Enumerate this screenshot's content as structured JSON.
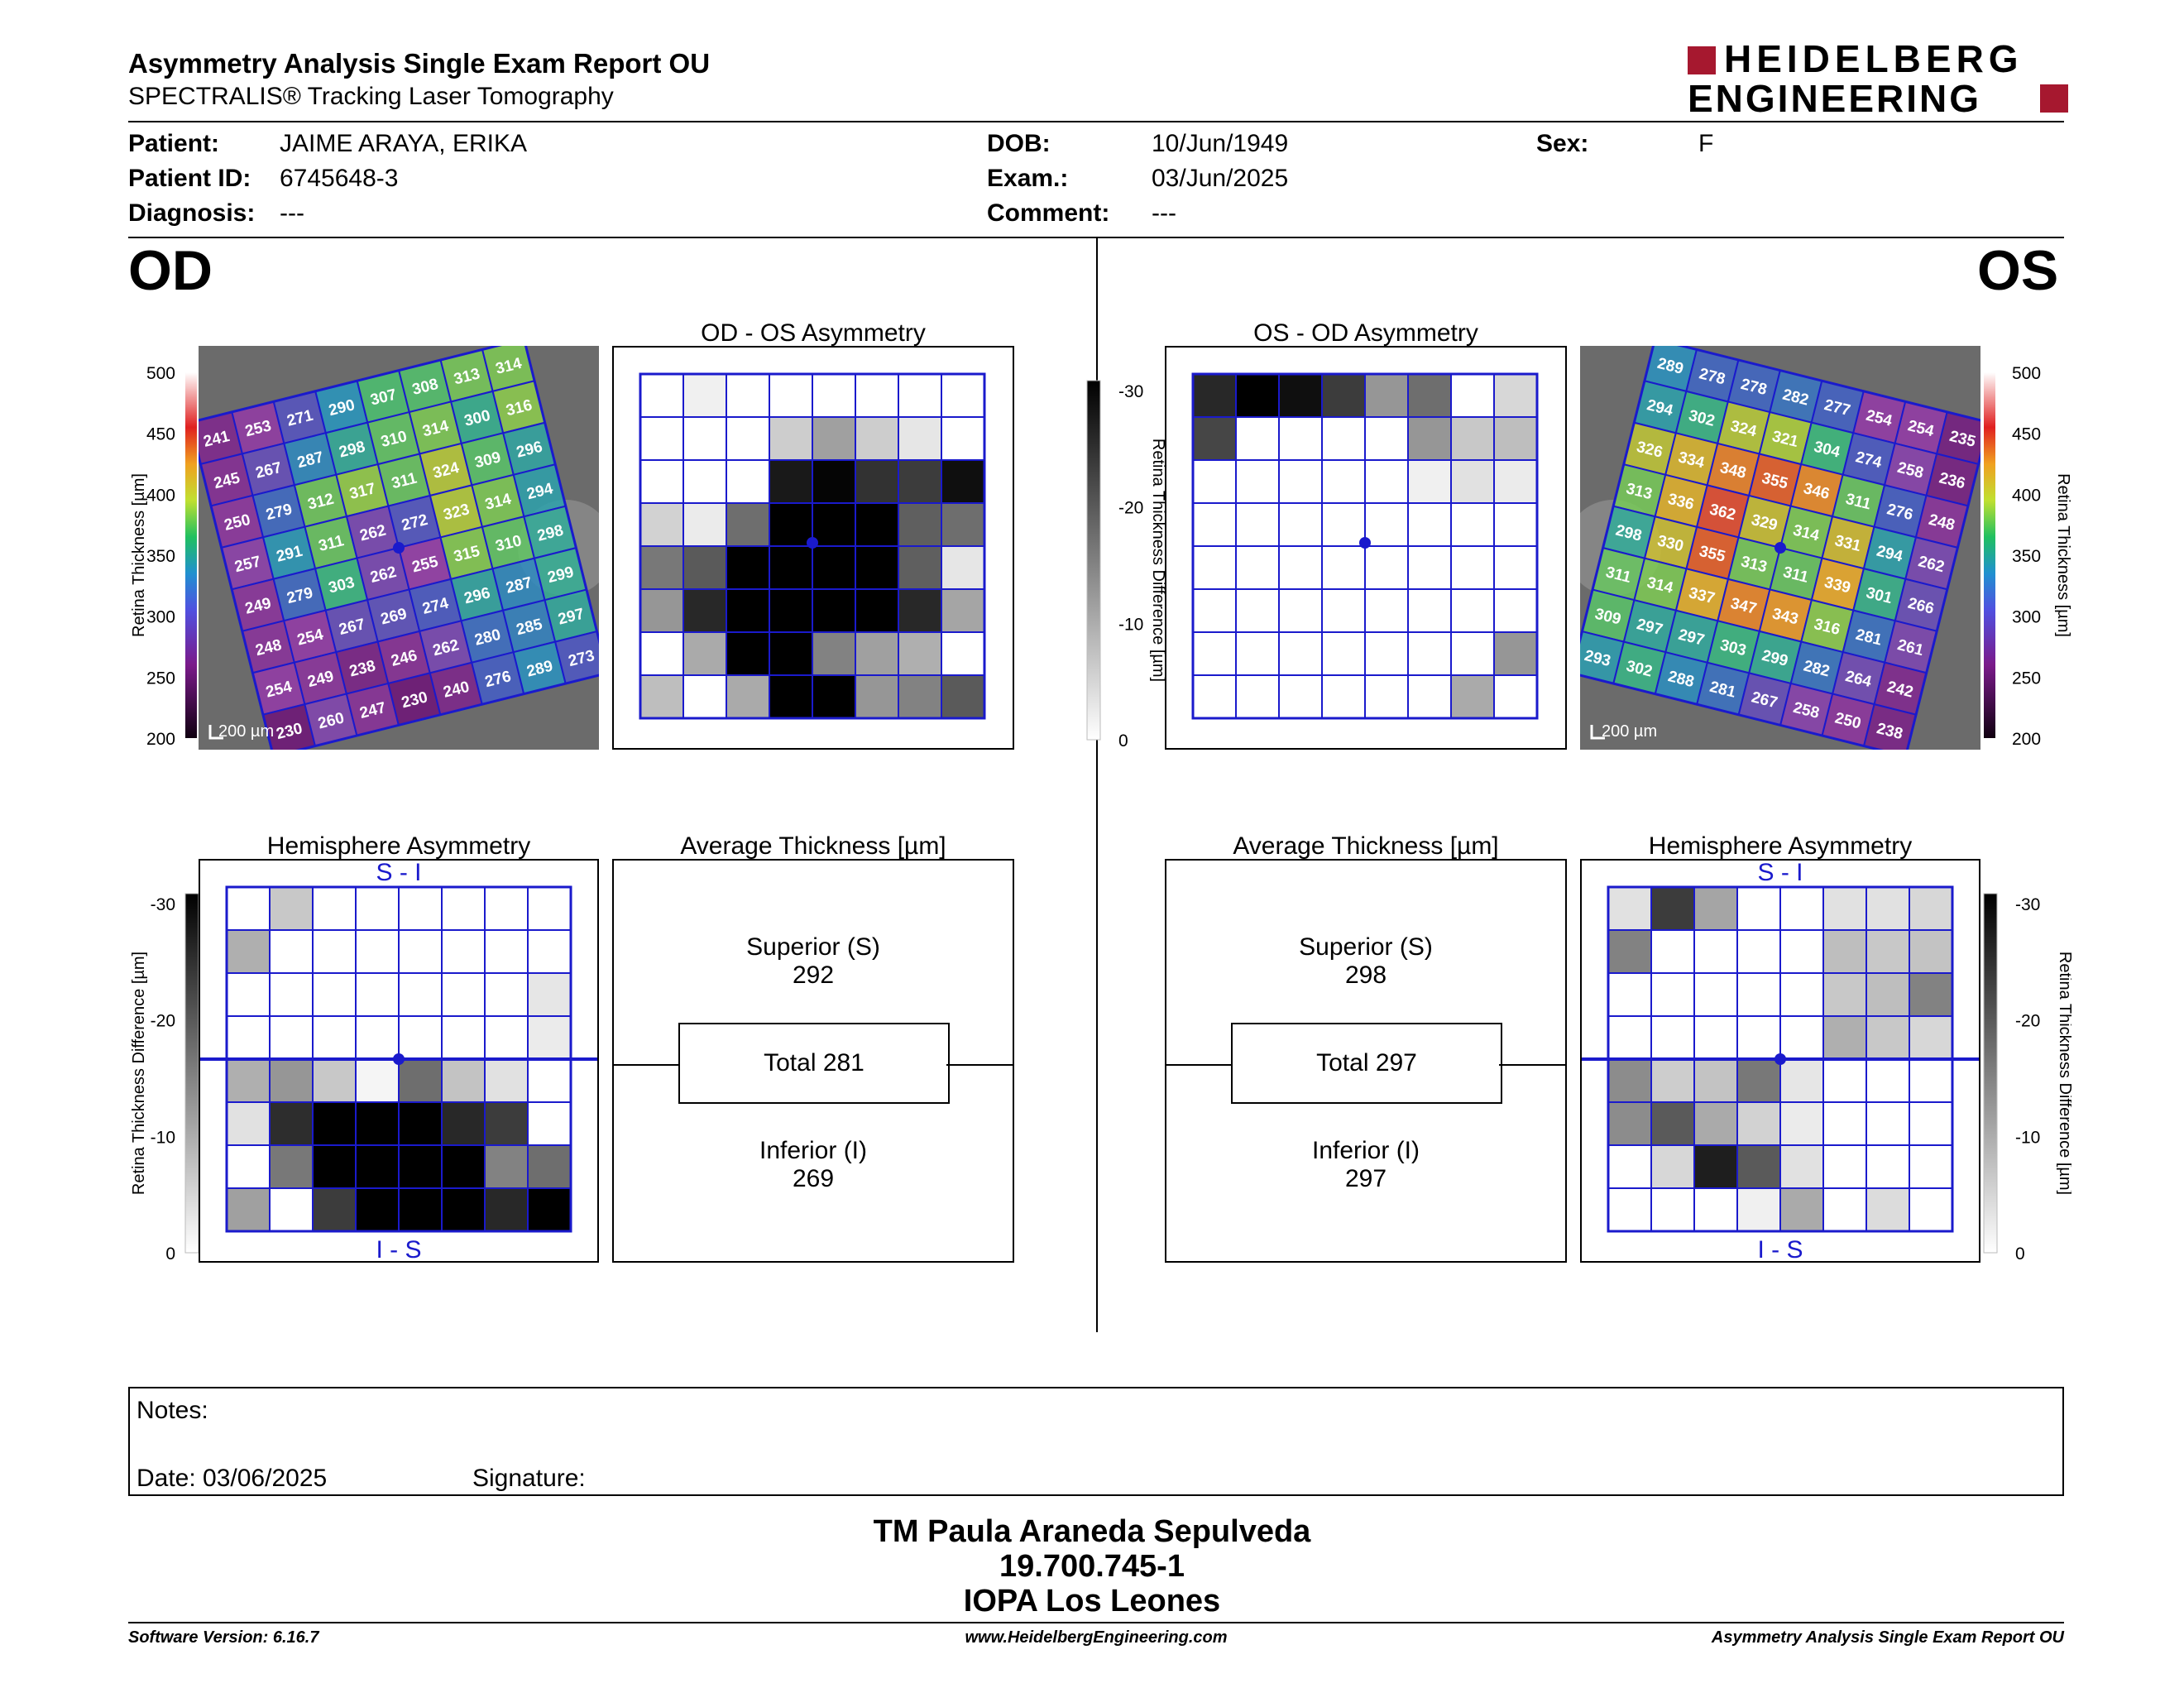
{
  "header": {
    "title": "Asymmetry Analysis Single Exam Report OU",
    "subtitle": "SPECTRALIS® Tracking Laser Tomography",
    "logo_line1": "HEIDELBERG",
    "logo_line2": "ENGINEERING"
  },
  "patient": {
    "patient_label": "Patient:",
    "patient_value": "JAIME ARAYA, ERIKA",
    "id_label": "Patient ID:",
    "id_value": "6745648-3",
    "diagnosis_label": "Diagnosis:",
    "diagnosis_value": "---",
    "dob_label": "DOB:",
    "dob_value": "10/Jun/1949",
    "exam_label": "Exam.:",
    "exam_value": "03/Jun/2025",
    "comment_label": "Comment:",
    "comment_value": "---",
    "sex_label": "Sex:",
    "sex_value": "F"
  },
  "eyes": {
    "od": "OD",
    "os": "OS"
  },
  "colors": {
    "grid_blue": "#1a1acc",
    "logo_red": "#a6182f"
  },
  "od": {
    "asym_title": "OD - OS Asymmetry",
    "hemi_title": "Hemisphere Asymmetry",
    "avg_title": "Average Thickness [µm]",
    "scale_label": "200 µm",
    "thickness_axis_label": "Retina Thickness [µm]",
    "diff_axis_label": "Retina Thickness Difference [µm]",
    "thickness_ticks": [
      "500",
      "450",
      "400",
      "350",
      "300",
      "250",
      "200"
    ],
    "diff_ticks": [
      "-30",
      "-20",
      "-10",
      "0"
    ],
    "thickness_grid": [
      [
        241,
        253,
        271,
        290,
        307,
        308,
        313,
        314
      ],
      [
        245,
        267,
        287,
        298,
        310,
        314,
        300,
        316
      ],
      [
        250,
        279,
        312,
        317,
        311,
        324,
        309,
        296
      ],
      [
        257,
        291,
        311,
        262,
        272,
        323,
        314,
        294
      ],
      [
        249,
        279,
        303,
        262,
        255,
        315,
        310,
        298
      ],
      [
        248,
        254,
        267,
        269,
        274,
        296,
        287,
        299
      ],
      [
        254,
        249,
        238,
        246,
        262,
        280,
        285,
        297
      ],
      [
        230,
        260,
        247,
        230,
        240,
        276,
        289,
        273
      ]
    ],
    "asymmetry_shades": [
      [
        255,
        240,
        255,
        255,
        255,
        255,
        255,
        255
      ],
      [
        255,
        255,
        255,
        205,
        160,
        205,
        230,
        255
      ],
      [
        255,
        255,
        255,
        25,
        5,
        50,
        60,
        15
      ],
      [
        210,
        235,
        110,
        0,
        0,
        0,
        95,
        110
      ],
      [
        120,
        90,
        0,
        0,
        0,
        0,
        95,
        230
      ],
      [
        150,
        40,
        0,
        0,
        0,
        0,
        40,
        165
      ],
      [
        255,
        170,
        0,
        0,
        130,
        160,
        175,
        255
      ],
      [
        190,
        255,
        170,
        0,
        0,
        150,
        130,
        90
      ]
    ],
    "hemi_label_top": "S - I",
    "hemi_label_bottom": "I - S",
    "hemi_shades": [
      [
        255,
        200,
        255,
        255,
        255,
        255,
        255,
        255
      ],
      [
        175,
        255,
        255,
        255,
        255,
        255,
        255,
        255
      ],
      [
        255,
        255,
        255,
        255,
        255,
        255,
        255,
        230
      ],
      [
        255,
        255,
        255,
        255,
        255,
        255,
        255,
        235
      ],
      [
        175,
        150,
        200,
        245,
        110,
        195,
        225,
        255
      ],
      [
        225,
        45,
        0,
        0,
        0,
        40,
        60,
        255
      ],
      [
        255,
        120,
        0,
        0,
        0,
        0,
        130,
        110
      ],
      [
        160,
        255,
        60,
        0,
        0,
        0,
        40,
        0
      ]
    ],
    "avg": {
      "superior_label": "Superior (S)",
      "superior_value": "292",
      "total_label": "Total 281",
      "inferior_label": "Inferior (I)",
      "inferior_value": "269"
    }
  },
  "os": {
    "asym_title": "OS - OD Asymmetry",
    "hemi_title": "Hemisphere Asymmetry",
    "avg_title": "Average Thickness [µm]",
    "scale_label": "200 µm",
    "thickness_axis_label": "Retina Thickness [µm]",
    "diff_axis_label": "Retina Thickness Difference [µm]",
    "thickness_ticks": [
      "500",
      "450",
      "400",
      "350",
      "300",
      "250",
      "200"
    ],
    "diff_ticks": [
      "-30",
      "-20",
      "-10",
      "0"
    ],
    "thickness_grid": [
      [
        289,
        278,
        278,
        282,
        277,
        254,
        254,
        235
      ],
      [
        294,
        302,
        324,
        321,
        304,
        274,
        258,
        236
      ],
      [
        326,
        334,
        348,
        355,
        346,
        311,
        276,
        248
      ],
      [
        313,
        336,
        362,
        329,
        314,
        331,
        294,
        262
      ],
      [
        298,
        330,
        355,
        313,
        311,
        339,
        301,
        266
      ],
      [
        311,
        314,
        337,
        347,
        343,
        316,
        281,
        261
      ],
      [
        309,
        297,
        297,
        303,
        299,
        282,
        264,
        242
      ],
      [
        293,
        302,
        288,
        281,
        267,
        258,
        250,
        238
      ]
    ],
    "asymmetry_shades": [
      [
        40,
        0,
        15,
        60,
        150,
        110,
        255,
        215
      ],
      [
        70,
        255,
        255,
        255,
        255,
        150,
        200,
        190
      ],
      [
        255,
        255,
        255,
        255,
        255,
        240,
        225,
        235
      ],
      [
        255,
        255,
        255,
        255,
        255,
        255,
        255,
        255
      ],
      [
        255,
        255,
        255,
        255,
        255,
        255,
        255,
        255
      ],
      [
        255,
        255,
        255,
        255,
        255,
        255,
        255,
        255
      ],
      [
        255,
        255,
        255,
        255,
        255,
        255,
        255,
        150
      ],
      [
        255,
        255,
        255,
        255,
        255,
        255,
        170,
        255
      ]
    ],
    "hemi_label_top": "S - I",
    "hemi_label_bottom": "I - S",
    "hemi_shades": [
      [
        225,
        60,
        165,
        255,
        255,
        225,
        225,
        215
      ],
      [
        130,
        255,
        255,
        255,
        255,
        190,
        200,
        195
      ],
      [
        255,
        255,
        255,
        255,
        255,
        200,
        190,
        130
      ],
      [
        255,
        255,
        255,
        255,
        255,
        175,
        200,
        215
      ],
      [
        140,
        205,
        195,
        120,
        230,
        255,
        255,
        255
      ],
      [
        140,
        90,
        170,
        210,
        235,
        255,
        255,
        255
      ],
      [
        255,
        215,
        30,
        90,
        225,
        255,
        255,
        255
      ],
      [
        255,
        255,
        255,
        240,
        170,
        255,
        220,
        255
      ]
    ],
    "avg": {
      "superior_label": "Superior (S)",
      "superior_value": "298",
      "total_label": "Total 297",
      "inferior_label": "Inferior (I)",
      "inferior_value": "297"
    }
  },
  "notes": {
    "notes_label": "Notes:",
    "date_label": "Date: 03/06/2025",
    "signature_label": "Signature:"
  },
  "signer": {
    "name": "TM Paula Araneda Sepulveda",
    "rut": "19.700.745-1",
    "institution": "IOPA Los Leones"
  },
  "footer": {
    "software": "Software Version: 6.16.7",
    "website": "www.HeidelbergEngineering.com",
    "report": "Asymmetry Analysis Single Exam Report OU"
  }
}
